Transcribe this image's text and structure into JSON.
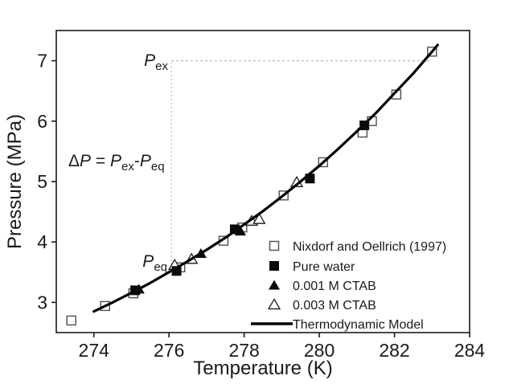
{
  "figure": {
    "background": "#ffffff",
    "ink": "#1a1a1a",
    "open_marker_stroke": "#4f4f4f",
    "guide_color": "#b9b9b9"
  },
  "chart_data": {
    "type": "scatter",
    "title": "",
    "xlabel": "Temperature (K)",
    "ylabel": "Pressure (MPa)",
    "xlim": [
      273,
      284
    ],
    "ylim": [
      2.5,
      7.5
    ],
    "x_ticks": [
      274,
      276,
      278,
      280,
      282,
      284
    ],
    "y_ticks": [
      3,
      4,
      5,
      6,
      7
    ],
    "grid": false,
    "legend_position": "inside-lower-right",
    "series": [
      {
        "name": "Nixdorf and Oellrich (1997)",
        "marker": "open-square",
        "points": [
          [
            273.4,
            2.7
          ],
          [
            274.3,
            2.94
          ],
          [
            275.05,
            3.15
          ],
          [
            276.3,
            3.58
          ],
          [
            277.45,
            4.02
          ],
          [
            277.95,
            4.24
          ],
          [
            279.05,
            4.77
          ],
          [
            280.1,
            5.32
          ],
          [
            281.15,
            5.81
          ],
          [
            281.4,
            6.0
          ],
          [
            282.05,
            6.44
          ],
          [
            283.0,
            7.15
          ]
        ]
      },
      {
        "name": "Pure water",
        "marker": "filled-square",
        "points": [
          [
            275.1,
            3.2
          ],
          [
            276.2,
            3.52
          ],
          [
            277.75,
            4.21
          ],
          [
            279.75,
            5.05
          ],
          [
            281.2,
            5.93
          ]
        ]
      },
      {
        "name": "0.001 M CTAB",
        "marker": "filled-triangle",
        "points": [
          [
            275.2,
            3.22
          ],
          [
            276.85,
            3.81
          ],
          [
            277.9,
            4.18
          ]
        ]
      },
      {
        "name": "0.003 M CTAB",
        "marker": "open-triangle",
        "points": [
          [
            276.15,
            3.62
          ],
          [
            276.6,
            3.72
          ],
          [
            278.2,
            4.35
          ],
          [
            278.4,
            4.38
          ],
          [
            279.4,
            4.99
          ]
        ]
      },
      {
        "name": "Thermodynamic Model",
        "marker": "line",
        "points": [
          [
            274.0,
            2.85
          ],
          [
            274.5,
            3.0
          ],
          [
            275.0,
            3.16
          ],
          [
            275.5,
            3.32
          ],
          [
            276.0,
            3.5
          ],
          [
            276.5,
            3.68
          ],
          [
            277.0,
            3.87
          ],
          [
            277.5,
            4.07
          ],
          [
            278.0,
            4.29
          ],
          [
            278.5,
            4.51
          ],
          [
            279.0,
            4.75
          ],
          [
            279.5,
            5.0
          ],
          [
            280.0,
            5.26
          ],
          [
            280.5,
            5.54
          ],
          [
            281.0,
            5.83
          ],
          [
            281.5,
            6.13
          ],
          [
            282.0,
            6.46
          ],
          [
            282.5,
            6.79
          ],
          [
            283.0,
            7.15
          ],
          [
            283.15,
            7.26
          ]
        ]
      }
    ],
    "annotations": {
      "p_ex": {
        "main": "P",
        "sub": "ex",
        "pressure": 7.0
      },
      "p_eq": {
        "main": "P",
        "sub": "eq",
        "pressure": 3.52
      },
      "delta_formula": {
        "delta": "Δ",
        "p1": "P",
        "equals": " =  ",
        "p2": "P",
        "sub_ex": "ex",
        "minus": "-",
        "p3": "P",
        "sub_eq": "eq"
      },
      "guide_vertical": {
        "T": 276.06,
        "P_from": 3.55,
        "P_to": 7.0
      },
      "guide_horizontal": {
        "P": 7.0,
        "T_from": 276.06,
        "T_to": 283.0
      }
    }
  }
}
